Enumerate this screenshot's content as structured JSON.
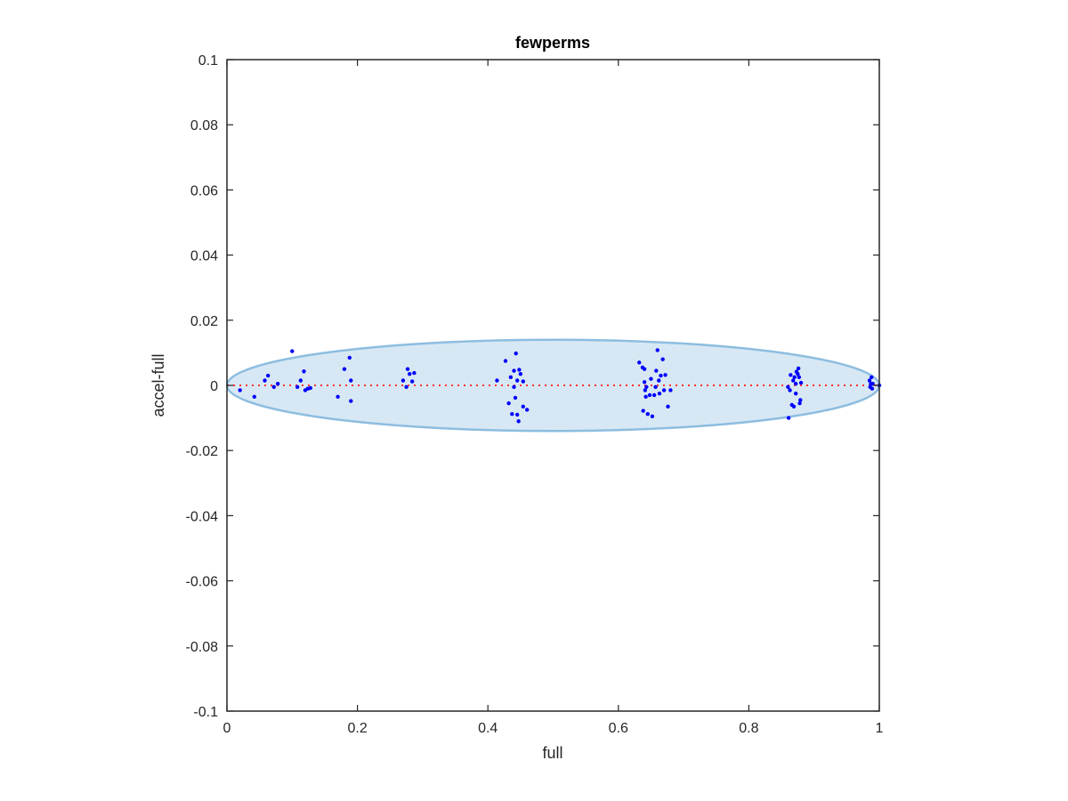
{
  "chart_data": {
    "type": "scatter",
    "title": "fewperms",
    "xlabel": "full",
    "ylabel": "accel-full",
    "xlim": [
      0,
      1
    ],
    "ylim": [
      -0.1,
      0.1
    ],
    "xticks": [
      0,
      0.2,
      0.4,
      0.6,
      0.8,
      1
    ],
    "xtick_labels": [
      "0",
      "0.2",
      "0.4",
      "0.6",
      "0.8",
      "1"
    ],
    "yticks": [
      -0.1,
      -0.08,
      -0.06,
      -0.04,
      -0.02,
      0,
      0.02,
      0.04,
      0.06,
      0.08,
      0.1
    ],
    "ytick_labels": [
      "-0.1",
      "-0.08",
      "-0.06",
      "-0.04",
      "-0.02",
      "0",
      "0.02",
      "0.04",
      "0.06",
      "0.08",
      "0.1"
    ],
    "grid": false,
    "colors": {
      "points": "#0000ff",
      "reference_line": "#ff3333",
      "ellipse_fill": "#d7e8f4",
      "ellipse_edge": "#8dbde0",
      "axes": "#262626"
    },
    "reference_line": {
      "y": 0,
      "style": "dotted"
    },
    "ellipse": {
      "cx": 0.5,
      "cy": 0,
      "rx": 0.5,
      "ry": 0.014
    },
    "points": [
      [
        0.02,
        -0.0015
      ],
      [
        0.042,
        -0.0035
      ],
      [
        0.058,
        0.0015
      ],
      [
        0.063,
        0.003
      ],
      [
        0.072,
        -0.0005
      ],
      [
        0.078,
        0.0005
      ],
      [
        0.1,
        0.0105
      ],
      [
        0.108,
        -0.0005
      ],
      [
        0.113,
        0.0015
      ],
      [
        0.118,
        0.0043
      ],
      [
        0.12,
        -0.0015
      ],
      [
        0.124,
        -0.001
      ],
      [
        0.128,
        -0.0008
      ],
      [
        0.17,
        -0.0035
      ],
      [
        0.18,
        0.005
      ],
      [
        0.188,
        0.0085
      ],
      [
        0.19,
        0.0015
      ],
      [
        0.19,
        -0.0048
      ],
      [
        0.27,
        0.0015
      ],
      [
        0.275,
        -0.0005
      ],
      [
        0.277,
        0.005
      ],
      [
        0.28,
        0.0035
      ],
      [
        0.284,
        0.0012
      ],
      [
        0.287,
        0.0038
      ],
      [
        0.414,
        0.0015
      ],
      [
        0.427,
        0.0075
      ],
      [
        0.432,
        -0.0055
      ],
      [
        0.435,
        0.0025
      ],
      [
        0.437,
        -0.0088
      ],
      [
        0.44,
        0.0045
      ],
      [
        0.44,
        -0.0005
      ],
      [
        0.442,
        -0.0038
      ],
      [
        0.443,
        0.0098
      ],
      [
        0.445,
        0.0015
      ],
      [
        0.445,
        -0.009
      ],
      [
        0.447,
        -0.011
      ],
      [
        0.448,
        0.0048
      ],
      [
        0.45,
        0.0035
      ],
      [
        0.454,
        0.0012
      ],
      [
        0.454,
        -0.0065
      ],
      [
        0.46,
        -0.0075
      ],
      [
        0.632,
        0.007
      ],
      [
        0.637,
        0.0055
      ],
      [
        0.638,
        -0.0078
      ],
      [
        0.64,
        0.005
      ],
      [
        0.64,
        0.001
      ],
      [
        0.641,
        -0.0015
      ],
      [
        0.642,
        -0.0035
      ],
      [
        0.643,
        -0.0005
      ],
      [
        0.645,
        -0.0088
      ],
      [
        0.648,
        -0.003
      ],
      [
        0.65,
        0.002
      ],
      [
        0.652,
        -0.0095
      ],
      [
        0.655,
        -0.003
      ],
      [
        0.657,
        -0.0005
      ],
      [
        0.658,
        0.0045
      ],
      [
        0.66,
        0.0108
      ],
      [
        0.662,
        0.0015
      ],
      [
        0.663,
        -0.0025
      ],
      [
        0.665,
        0.003
      ],
      [
        0.668,
        0.008
      ],
      [
        0.67,
        -0.0015
      ],
      [
        0.672,
        0.0032
      ],
      [
        0.676,
        -0.0065
      ],
      [
        0.68,
        -0.0015
      ],
      [
        0.86,
        -0.0005
      ],
      [
        0.861,
        -0.01
      ],
      [
        0.863,
        -0.0015
      ],
      [
        0.864,
        0.0032
      ],
      [
        0.866,
        -0.006
      ],
      [
        0.868,
        0.0015
      ],
      [
        0.869,
        -0.0065
      ],
      [
        0.87,
        0.0025
      ],
      [
        0.872,
        0.0005
      ],
      [
        0.872,
        -0.0025
      ],
      [
        0.873,
        0.0042
      ],
      [
        0.875,
        0.0035
      ],
      [
        0.876,
        0.0052
      ],
      [
        0.877,
        0.0025
      ],
      [
        0.878,
        -0.0055
      ],
      [
        0.879,
        -0.0045
      ],
      [
        0.88,
        0.0008
      ],
      [
        0.985,
        0.0015
      ],
      [
        0.986,
        -0.0005
      ],
      [
        0.987,
        0.0005
      ],
      [
        0.988,
        0.0025
      ],
      [
        0.989,
        -0.001
      ],
      [
        0.99,
        0.0005
      ],
      [
        1.0,
        0.0
      ]
    ]
  }
}
